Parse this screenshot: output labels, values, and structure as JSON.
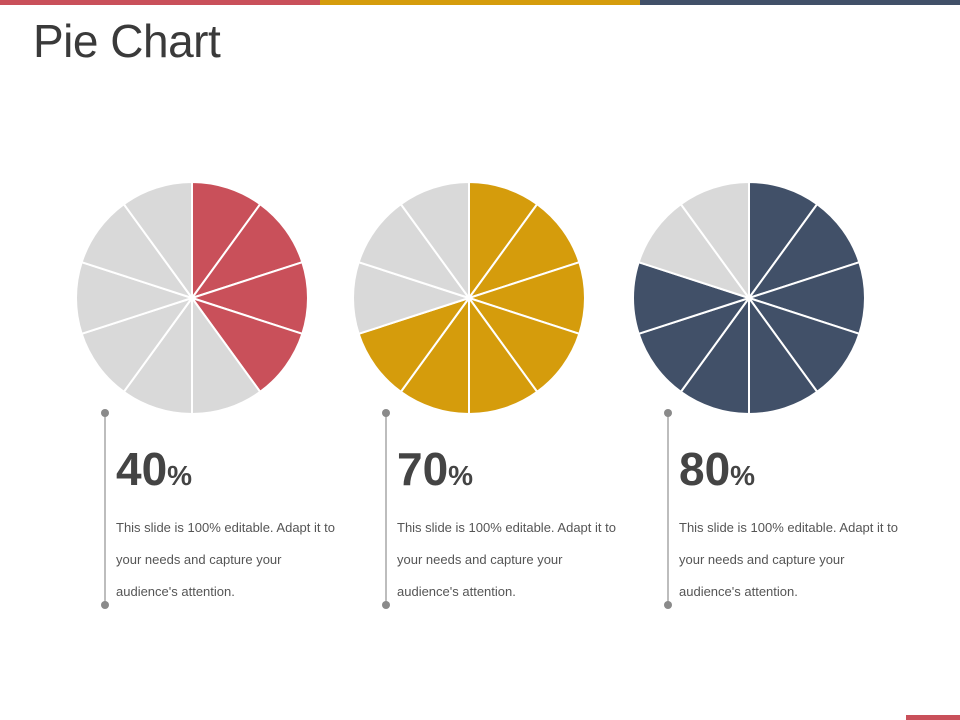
{
  "colors": {
    "red": "#c9505a",
    "gold": "#d59c0c",
    "navy": "#415068",
    "gray": "#d9d9d9",
    "divider": "#ffffff"
  },
  "slide": {
    "title": "Pie Chart"
  },
  "items": [
    {
      "value": "40",
      "unit": "%",
      "description": "This slide is 100% editable. Adapt it to your needs and capture your audience's attention."
    },
    {
      "value": "70",
      "unit": "%",
      "description": "This slide is 100% editable. Adapt it to your needs and capture your audience's attention."
    },
    {
      "value": "80",
      "unit": "%",
      "description": "This slide is 100% editable. Adapt it to your needs and capture your audience's attention."
    }
  ],
  "chart_data": [
    {
      "type": "pie",
      "segments_total": 10,
      "filled_segments": 4,
      "percent": 40,
      "fill_color": "#c9505a",
      "empty_color": "#d9d9d9"
    },
    {
      "type": "pie",
      "segments_total": 10,
      "filled_segments": 7,
      "percent": 70,
      "fill_color": "#d59c0c",
      "empty_color": "#d9d9d9"
    },
    {
      "type": "pie",
      "segments_total": 10,
      "filled_segments": 8,
      "percent": 80,
      "fill_color": "#415068",
      "empty_color": "#d9d9d9"
    }
  ]
}
